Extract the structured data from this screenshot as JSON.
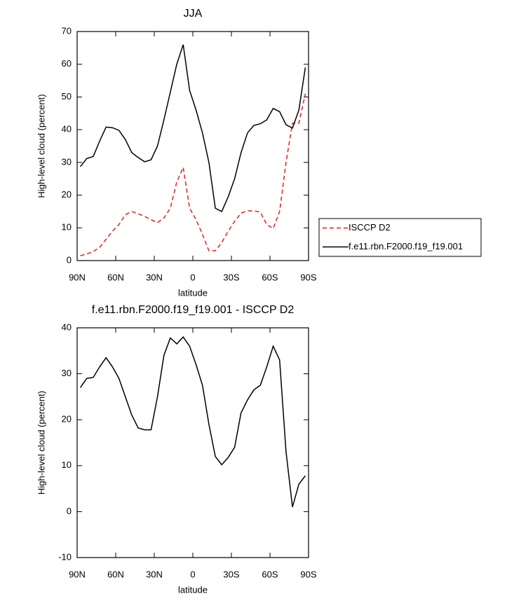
{
  "chart_data": [
    {
      "type": "line",
      "title": "JJA",
      "xlabel": "latitude",
      "ylabel": "High-level cloud (percent)",
      "x": [
        87.5,
        82.5,
        77.5,
        72.5,
        67.5,
        62.5,
        57.5,
        52.5,
        47.5,
        42.5,
        37.5,
        32.5,
        27.5,
        22.5,
        17.5,
        12.5,
        7.5,
        2.5,
        -2.5,
        -7.5,
        -12.5,
        -17.5,
        -22.5,
        -27.5,
        -32.5,
        -37.5,
        -42.5,
        -47.5,
        -52.5,
        -57.5,
        -62.5,
        -67.5,
        -72.5,
        -77.5,
        -82.5,
        -87.5
      ],
      "series": [
        {
          "name": "ISCCP D2",
          "color": "#e0201b",
          "style": "dashed",
          "values": [
            1.5,
            2,
            2.8,
            4,
            6.5,
            9,
            11,
            14,
            15,
            14.3,
            13.5,
            12.5,
            11.6,
            13,
            16,
            24,
            28.5,
            16,
            12.5,
            8,
            3,
            3,
            5.5,
            9,
            12,
            14.5,
            15.2,
            15.2,
            14.8,
            11,
            9.8,
            15,
            30,
            42,
            42,
            51
          ]
        },
        {
          "name": "f.e11.rbn.F2000.f19_f19.001",
          "color": "#000000",
          "style": "solid",
          "values": [
            28.7,
            31.2,
            31.8,
            36.5,
            40.8,
            40.6,
            39.8,
            37,
            33,
            31.5,
            30.2,
            30.8,
            35,
            43,
            51.5,
            60,
            66,
            52,
            46,
            39,
            30,
            16,
            15,
            19.5,
            25,
            33,
            39,
            41.3,
            41.8,
            43,
            46.5,
            45.5,
            41.5,
            40.5,
            46,
            59
          ]
        }
      ],
      "xlim": [
        90,
        -90
      ],
      "xticks": [
        {
          "value": 90,
          "label": "90N"
        },
        {
          "value": 60,
          "label": "60N"
        },
        {
          "value": 30,
          "label": "30N"
        },
        0,
        {
          "value": -30,
          "label": "30S"
        },
        {
          "value": -60,
          "label": "60S"
        },
        {
          "value": -90,
          "label": "90S"
        }
      ],
      "ylim": [
        0,
        70
      ],
      "yticks": [
        0,
        10,
        20,
        30,
        40,
        50,
        60,
        70
      ],
      "legend": "right"
    },
    {
      "type": "line",
      "title": "f.e11.rbn.F2000.f19_f19.001 - ISCCP D2",
      "xlabel": "latitude",
      "ylabel": "High-level cloud (percent)",
      "x": [
        87.5,
        82.5,
        77.5,
        72.5,
        67.5,
        62.5,
        57.5,
        52.5,
        47.5,
        42.5,
        37.5,
        32.5,
        27.5,
        22.5,
        17.5,
        12.5,
        7.5,
        2.5,
        -2.5,
        -7.5,
        -12.5,
        -17.5,
        -22.5,
        -27.5,
        -32.5,
        -37.5,
        -42.5,
        -47.5,
        -52.5,
        -57.5,
        -62.5,
        -67.5,
        -72.5,
        -77.5,
        -82.5,
        -87.5
      ],
      "series": [
        {
          "color": "#000000",
          "style": "solid",
          "values": [
            27,
            29,
            29.2,
            31.5,
            33.5,
            31.5,
            29,
            25,
            21,
            18.2,
            17.8,
            17.8,
            25,
            34,
            37.8,
            36.5,
            38,
            36,
            32,
            27.5,
            19,
            12,
            10.2,
            11.8,
            14,
            21.5,
            24.3,
            26.5,
            27.5,
            31.5,
            36,
            33,
            13,
            1,
            6,
            7.8
          ]
        }
      ],
      "xlim": [
        90,
        -90
      ],
      "xticks": [
        {
          "value": 90,
          "label": "90N"
        },
        {
          "value": 60,
          "label": "60N"
        },
        {
          "value": 30,
          "label": "30N"
        },
        0,
        {
          "value": -30,
          "label": "30S"
        },
        {
          "value": -60,
          "label": "60S"
        },
        {
          "value": -90,
          "label": "90S"
        }
      ],
      "ylim": [
        -10,
        40
      ],
      "yticks": [
        -10,
        0,
        10,
        20,
        30,
        40
      ]
    }
  ]
}
